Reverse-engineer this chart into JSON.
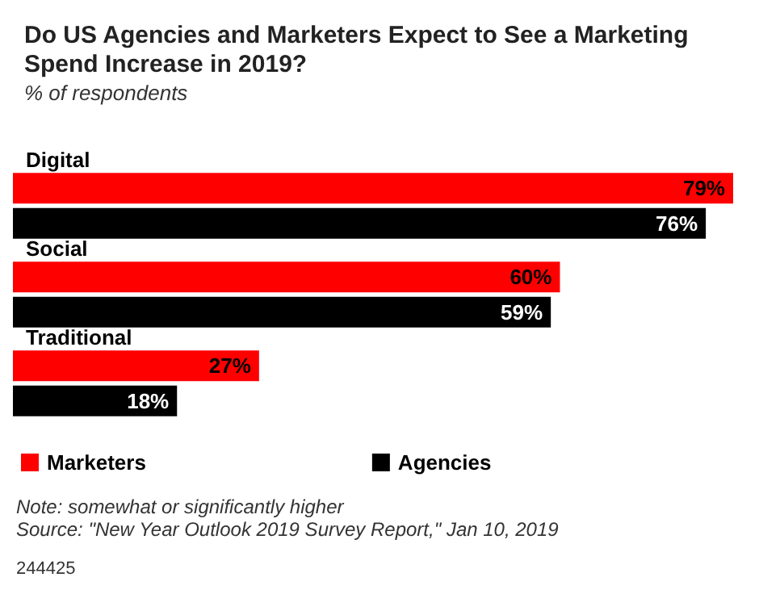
{
  "chart_data": {
    "type": "bar",
    "orientation": "horizontal",
    "title": "Do US Agencies and Marketers Expect to See a Marketing Spend Increase in 2019?",
    "subtitle": "% of respondents",
    "categories": [
      "Digital",
      "Social",
      "Traditional"
    ],
    "series": [
      {
        "name": "Marketers",
        "color": "#ff0000",
        "values": [
          79,
          60,
          27
        ],
        "value_labels": [
          "79%",
          "60%",
          "27%"
        ]
      },
      {
        "name": "Agencies",
        "color": "#000000",
        "values": [
          76,
          59,
          18
        ],
        "value_labels": [
          "76%",
          "59%",
          "18%"
        ]
      }
    ],
    "legend": "bottom left",
    "annotations": [
      "Note: somewhat or significantly higher",
      "Source: \"New Year Outlook 2019 Survey Report,\" Jan 10, 2019",
      "244425"
    ]
  }
}
